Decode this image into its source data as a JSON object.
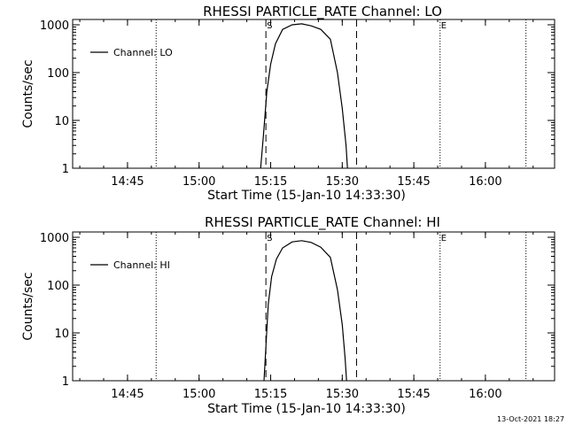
{
  "footer": {
    "timestamp": "13-Oct-2021 18:27"
  },
  "chart_data": [
    {
      "type": "line",
      "title": "RHESSI PARTICLE_RATE Channel: LO",
      "xlabel": "Start Time (15-Jan-10 14:33:30)",
      "ylabel": "Counts/sec",
      "yscale": "log",
      "ylim": [
        1,
        1000
      ],
      "xlim_minutes_from_start": [
        0,
        101
      ],
      "x_ticks": [
        {
          "label": "14:45",
          "minutes": 11.5
        },
        {
          "label": "15:00",
          "minutes": 26.5
        },
        {
          "label": "15:15",
          "minutes": 41.5
        },
        {
          "label": "15:30",
          "minutes": 56.5
        },
        {
          "label": "15:45",
          "minutes": 71.5
        },
        {
          "label": "16:00",
          "minutes": 86.5
        }
      ],
      "y_ticks": [
        {
          "label": "1",
          "value": 1
        },
        {
          "label": "10",
          "value": 10
        },
        {
          "label": "100",
          "value": 100
        },
        {
          "label": "1000",
          "value": 1000
        }
      ],
      "legend": {
        "label": "Channel: LO",
        "position": "top-left"
      },
      "markers": [
        {
          "label": "S",
          "minutes": 40.5
        },
        {
          "label": "E",
          "minutes": 77.0
        }
      ],
      "dashed_lines_minutes": [
        40.5,
        59.5
      ],
      "dotted_lines_minutes": [
        17.5,
        77.0,
        95.0
      ],
      "series": [
        {
          "name": "Channel: LO",
          "x": [
            39.4,
            40.0,
            40.7,
            41.5,
            42.5,
            44.0,
            46.0,
            48.0,
            50.0,
            52.0,
            54.0,
            55.5,
            56.5,
            57.3,
            57.6
          ],
          "values": [
            1,
            5,
            40,
            150,
            400,
            800,
            1000,
            1050,
            950,
            800,
            500,
            100,
            18,
            3,
            1
          ]
        }
      ]
    },
    {
      "type": "line",
      "title": "RHESSI PARTICLE_RATE Channel: HI",
      "xlabel": "Start Time (15-Jan-10 14:33:30)",
      "ylabel": "Counts/sec",
      "yscale": "log",
      "ylim": [
        1,
        1000
      ],
      "xlim_minutes_from_start": [
        0,
        101
      ],
      "x_ticks": [
        {
          "label": "14:45",
          "minutes": 11.5
        },
        {
          "label": "15:00",
          "minutes": 26.5
        },
        {
          "label": "15:15",
          "minutes": 41.5
        },
        {
          "label": "15:30",
          "minutes": 56.5
        },
        {
          "label": "15:45",
          "minutes": 71.5
        },
        {
          "label": "16:00",
          "minutes": 86.5
        }
      ],
      "y_ticks": [
        {
          "label": "1",
          "value": 1
        },
        {
          "label": "10",
          "value": 10
        },
        {
          "label": "100",
          "value": 100
        },
        {
          "label": "1000",
          "value": 1000
        }
      ],
      "legend": {
        "label": "Channel: HI",
        "position": "top-left"
      },
      "markers": [
        {
          "label": "S",
          "minutes": 40.5
        },
        {
          "label": "E",
          "minutes": 77.0
        }
      ],
      "dashed_lines_minutes": [
        40.5,
        59.5
      ],
      "dotted_lines_minutes": [
        17.5,
        77.0,
        95.0
      ],
      "series": [
        {
          "name": "Channel: HI",
          "x": [
            40.1,
            40.5,
            41.0,
            41.7,
            42.7,
            44.0,
            46.0,
            48.0,
            50.0,
            52.0,
            54.0,
            55.5,
            56.5,
            57.1,
            57.4
          ],
          "values": [
            1,
            5,
            40,
            150,
            350,
            600,
            800,
            850,
            780,
            620,
            380,
            80,
            15,
            3,
            1
          ]
        }
      ]
    }
  ]
}
